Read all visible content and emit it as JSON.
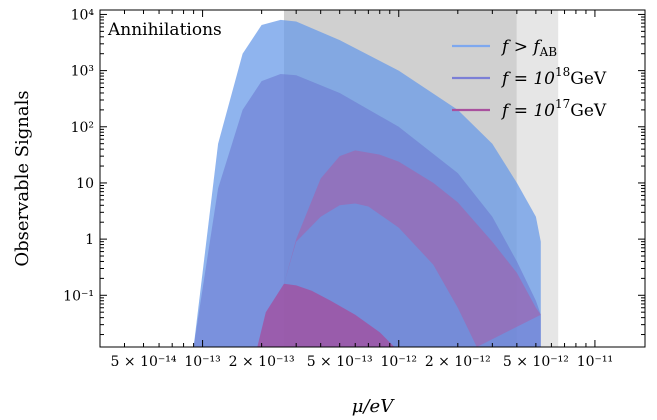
{
  "chart_data": {
    "type": "area",
    "title": "",
    "panel_label": "Annihilations",
    "xlabel": "μ/eV",
    "ylabel": "Observable Signals",
    "xscale": "log",
    "yscale": "log",
    "xlim": [
      3e-14,
      1.8e-11
    ],
    "ylim": [
      0.012,
      12000
    ],
    "x_tick_labels": [
      {
        "value": 5e-14,
        "label": "5 × 10⁻¹⁴"
      },
      {
        "value": 1e-13,
        "label": "10⁻¹³"
      },
      {
        "value": 2e-13,
        "label": "2 × 10⁻¹³"
      },
      {
        "value": 5e-13,
        "label": "5 × 10⁻¹³"
      },
      {
        "value": 1e-12,
        "label": "10⁻¹²"
      },
      {
        "value": 2e-12,
        "label": "2 × 10⁻¹²"
      },
      {
        "value": 5e-12,
        "label": "5 × 10⁻¹²"
      },
      {
        "value": 1e-11,
        "label": "10⁻¹¹"
      }
    ],
    "y_tick_labels": [
      {
        "value": 0.1,
        "label": "10⁻¹"
      },
      {
        "value": 1,
        "label": "1"
      },
      {
        "value": 10,
        "label": "10"
      },
      {
        "value": 100,
        "label": "10²"
      },
      {
        "value": 1000,
        "label": "10³"
      },
      {
        "value": 10000,
        "label": "10⁴"
      }
    ],
    "shaded_regions": [
      {
        "x0": 2.6e-13,
        "x1": 4e-12,
        "color": "#d0d0d0"
      },
      {
        "x0": 4e-12,
        "x1": 6.5e-12,
        "color": "#e6e6e6"
      }
    ],
    "series": [
      {
        "name": "f > f_AB",
        "legend_label": "f > f_AB",
        "color": "#6a9be8",
        "fill_opacity": 0.75,
        "upper": [
          [
            9e-14,
            0.012
          ],
          [
            1.2e-13,
            50
          ],
          [
            1.6e-13,
            2000
          ],
          [
            2e-13,
            6500
          ],
          [
            2.5e-13,
            8000
          ],
          [
            3e-13,
            7500
          ],
          [
            5e-13,
            3500
          ],
          [
            1e-12,
            1000
          ],
          [
            2e-12,
            200
          ],
          [
            3e-12,
            50
          ],
          [
            4e-12,
            10
          ],
          [
            5e-12,
            2.5
          ],
          [
            5.3e-12,
            0.9
          ]
        ],
        "lower": [
          [
            9e-14,
            0.012
          ],
          [
            5.3e-12,
            0.012
          ]
        ]
      },
      {
        "name": "f = 10^18 GeV",
        "legend_label": "f = 10¹⁸GeV",
        "color": "#6a74d0",
        "fill_opacity": 0.55,
        "upper": [
          [
            9e-14,
            0.012
          ],
          [
            1.2e-13,
            8
          ],
          [
            1.6e-13,
            200
          ],
          [
            2e-13,
            650
          ],
          [
            2.5e-13,
            870
          ],
          [
            3e-13,
            830
          ],
          [
            5e-13,
            400
          ],
          [
            1e-12,
            100
          ],
          [
            2e-12,
            15
          ],
          [
            3e-12,
            2.5
          ],
          [
            4e-12,
            0.4
          ],
          [
            5e-12,
            0.08
          ],
          [
            5.3e-12,
            0.045
          ]
        ],
        "lower": [
          [
            9e-14,
            0.012
          ],
          [
            5.3e-12,
            0.012
          ]
        ]
      },
      {
        "name": "f = 10^17 GeV",
        "legend_label": "f = 10¹⁷GeV",
        "color": "#a64c9c",
        "fill_opacity": 0.75,
        "upper": [
          [
            1.9e-13,
            0.012
          ],
          [
            2.1e-13,
            0.05
          ],
          [
            2.6e-13,
            0.16
          ],
          [
            3e-13,
            0.15
          ],
          [
            3.6e-13,
            0.12
          ],
          [
            4.5e-13,
            0.08
          ],
          [
            6e-13,
            0.045
          ],
          [
            8e-13,
            0.022
          ],
          [
            9.5e-13,
            0.012
          ]
        ],
        "lower": [
          [
            1.9e-13,
            0.012
          ],
          [
            9.5e-13,
            0.012
          ]
        ]
      },
      {
        "name": "f = 10^17 GeV upper band",
        "color": "#a75fa8",
        "fill_opacity": 0.55,
        "upper": [
          [
            2.6e-13,
            0.16
          ],
          [
            3e-13,
            1.0
          ],
          [
            4e-13,
            12
          ],
          [
            5e-13,
            30
          ],
          [
            6e-13,
            38
          ],
          [
            8e-13,
            32
          ],
          [
            1e-12,
            24
          ],
          [
            1.5e-12,
            10
          ],
          [
            2e-12,
            4.5
          ],
          [
            3e-12,
            0.9
          ],
          [
            4e-12,
            0.25
          ],
          [
            5e-12,
            0.06
          ],
          [
            5.3e-12,
            0.045
          ]
        ],
        "lower": [
          [
            2.6e-13,
            0.16
          ],
          [
            3e-13,
            0.9
          ],
          [
            4e-13,
            2.5
          ],
          [
            5e-13,
            4.0
          ],
          [
            6e-13,
            4.3
          ],
          [
            7e-13,
            3.8
          ],
          [
            1e-12,
            1.6
          ],
          [
            1.5e-12,
            0.35
          ],
          [
            2e-12,
            0.06
          ],
          [
            2.5e-12,
            0.012
          ]
        ]
      }
    ],
    "legend": {
      "placement": "top-right",
      "entries": [
        {
          "prefix": "f > f",
          "sub": "AB",
          "suffix": "",
          "color": "#7ea8ef"
        },
        {
          "prefix": "f = 10",
          "sup": "18",
          "suffix": "GeV",
          "color": "#7b7fd6"
        },
        {
          "prefix": "f = 10",
          "sup": "17",
          "suffix": "GeV",
          "color": "#a9519e"
        }
      ]
    }
  }
}
